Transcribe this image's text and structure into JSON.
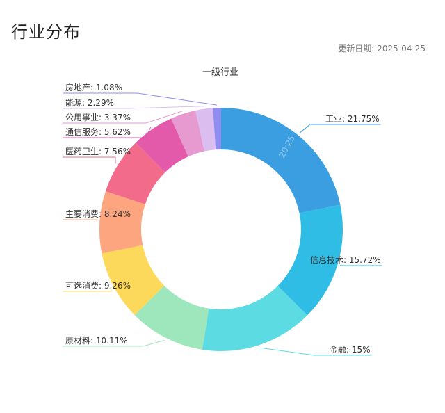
{
  "page": {
    "title": "行业分布",
    "update_label": "更新日期:",
    "update_date": "2025-04-25"
  },
  "chart_data": {
    "type": "pie",
    "title": "一级行业",
    "donut": true,
    "categories": [
      "工业",
      "信息技术",
      "金融",
      "原材料",
      "可选消费",
      "主要消费",
      "医药卫生",
      "通信服务",
      "公用事业",
      "能源",
      "房地产"
    ],
    "values": [
      21.75,
      15.72,
      15,
      10.11,
      9.26,
      8.24,
      7.56,
      5.62,
      3.37,
      2.29,
      1.08
    ],
    "labels": [
      "工业: 21.75%",
      "信息技术: 15.72%",
      "金融: 15%",
      "原材料: 10.11%",
      "可选消费: 9.26%",
      "主要消费: 8.24%",
      "医药卫生: 7.56%",
      "通信服务: 5.62%",
      "公用事业: 3.37%",
      "能源: 2.29%",
      "房地产: 1.08%"
    ],
    "colors": [
      "#3a9ee0",
      "#2fbde6",
      "#5cdbe3",
      "#9ee6bb",
      "#fdd95b",
      "#fca57f",
      "#f26b8a",
      "#e25aa9",
      "#e69ad0",
      "#dcbdf0",
      "#8f8df0"
    ],
    "watermark": "20:25"
  }
}
